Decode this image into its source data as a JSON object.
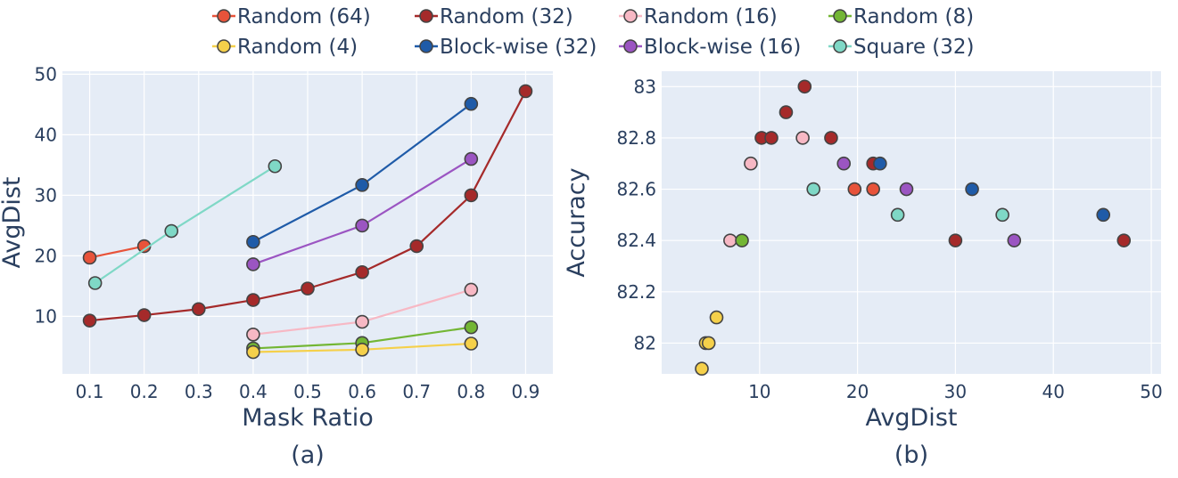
{
  "legend": [
    {
      "name": "Random (64)",
      "color": "#e8533a"
    },
    {
      "name": "Random (32)",
      "color": "#a52a2a"
    },
    {
      "name": "Random (16)",
      "color": "#f7b8c4"
    },
    {
      "name": "Random (8)",
      "color": "#73b634"
    },
    {
      "name": "Random (4)",
      "color": "#f5d04a"
    },
    {
      "name": "Block-wise (32)",
      "color": "#1f5ba8"
    },
    {
      "name": "Block-wise (16)",
      "color": "#9b55c2"
    },
    {
      "name": "Square (32)",
      "color": "#7fd8c6"
    }
  ],
  "chart_data": [
    {
      "type": "line",
      "panel_label": "(a)",
      "xlabel": "Mask Ratio",
      "ylabel": "AvgDist",
      "xlim": [
        0.05,
        0.95
      ],
      "ylim": [
        0.5,
        50.5
      ],
      "xticks": [
        0.1,
        0.2,
        0.3,
        0.4,
        0.5,
        0.6,
        0.7,
        0.8,
        0.9
      ],
      "xtick_labels": [
        "0.1",
        "0.2",
        "0.3",
        "0.4",
        "0.5",
        "0.6",
        "0.7",
        "0.8",
        "0.9"
      ],
      "yticks": [
        10,
        20,
        30,
        40,
        50
      ],
      "ytick_labels": [
        "10",
        "20",
        "30",
        "40",
        "50"
      ],
      "grid": true,
      "series": [
        {
          "name": "Random (64)",
          "color": "#e8533a",
          "x": [
            0.1,
            0.2
          ],
          "y": [
            19.7,
            21.6
          ]
        },
        {
          "name": "Random (32)",
          "color": "#a52a2a",
          "x": [
            0.1,
            0.2,
            0.3,
            0.4,
            0.5,
            0.6,
            0.7,
            0.8,
            0.9
          ],
          "y": [
            9.3,
            10.2,
            11.2,
            12.7,
            14.6,
            17.3,
            21.6,
            30.0,
            47.2
          ]
        },
        {
          "name": "Random (16)",
          "color": "#f7b8c4",
          "x": [
            0.4,
            0.6,
            0.8
          ],
          "y": [
            7.0,
            9.1,
            14.4
          ]
        },
        {
          "name": "Random (8)",
          "color": "#73b634",
          "x": [
            0.4,
            0.6,
            0.8
          ],
          "y": [
            4.7,
            5.6,
            8.2
          ]
        },
        {
          "name": "Random (4)",
          "color": "#f5d04a",
          "x": [
            0.4,
            0.6,
            0.8
          ],
          "y": [
            4.1,
            4.5,
            5.5
          ]
        },
        {
          "name": "Block-wise (32)",
          "color": "#1f5ba8",
          "x": [
            0.4,
            0.6,
            0.8
          ],
          "y": [
            22.3,
            31.7,
            45.1
          ]
        },
        {
          "name": "Block-wise (16)",
          "color": "#9b55c2",
          "x": [
            0.4,
            0.6,
            0.8
          ],
          "y": [
            18.6,
            25.0,
            36.0
          ]
        },
        {
          "name": "Square (32)",
          "color": "#7fd8c6",
          "x": [
            0.11,
            0.25,
            0.44
          ],
          "y": [
            15.5,
            24.1,
            34.8
          ]
        }
      ]
    },
    {
      "type": "scatter",
      "panel_label": "(b)",
      "xlabel": "AvgDist",
      "ylabel": "Accuracy",
      "xlim": [
        0,
        51
      ],
      "ylim": [
        81.88,
        83.06
      ],
      "xticks": [
        10,
        20,
        30,
        40,
        50
      ],
      "xtick_labels": [
        "10",
        "20",
        "30",
        "40",
        "50"
      ],
      "yticks": [
        82,
        82.2,
        82.4,
        82.6,
        82.8,
        83
      ],
      "ytick_labels": [
        "82",
        "82.2",
        "82.4",
        "82.6",
        "82.8",
        "83"
      ],
      "grid": true,
      "series": [
        {
          "name": "Random (64)",
          "color": "#e8533a",
          "x": [
            19.7,
            21.6
          ],
          "y": [
            82.6,
            82.6
          ]
        },
        {
          "name": "Random (32)",
          "color": "#a52a2a",
          "x": [
            10.2,
            11.2,
            12.7,
            14.6,
            17.3,
            21.6,
            30.0,
            47.2
          ],
          "y": [
            82.8,
            82.8,
            82.9,
            83.0,
            82.8,
            82.7,
            82.4,
            82.4
          ]
        },
        {
          "name": "Random (16)",
          "color": "#f7b8c4",
          "x": [
            7.0,
            9.1,
            14.4
          ],
          "y": [
            82.4,
            82.7,
            82.8
          ]
        },
        {
          "name": "Random (8)",
          "color": "#73b634",
          "x": [
            8.2
          ],
          "y": [
            82.4
          ]
        },
        {
          "name": "Random (4)",
          "color": "#f5d04a",
          "x": [
            4.1,
            4.5,
            4.8,
            5.6
          ],
          "y": [
            81.9,
            82.0,
            82.0,
            82.1
          ]
        },
        {
          "name": "Block-wise (32)",
          "color": "#1f5ba8",
          "x": [
            22.3,
            31.7,
            45.1
          ],
          "y": [
            82.7,
            82.6,
            82.5
          ]
        },
        {
          "name": "Block-wise (16)",
          "color": "#9b55c2",
          "x": [
            18.6,
            25.0,
            36.0
          ],
          "y": [
            82.7,
            82.6,
            82.4
          ]
        },
        {
          "name": "Square (32)",
          "color": "#7fd8c6",
          "x": [
            15.5,
            24.1,
            34.8
          ],
          "y": [
            82.6,
            82.5,
            82.5
          ]
        }
      ]
    }
  ]
}
